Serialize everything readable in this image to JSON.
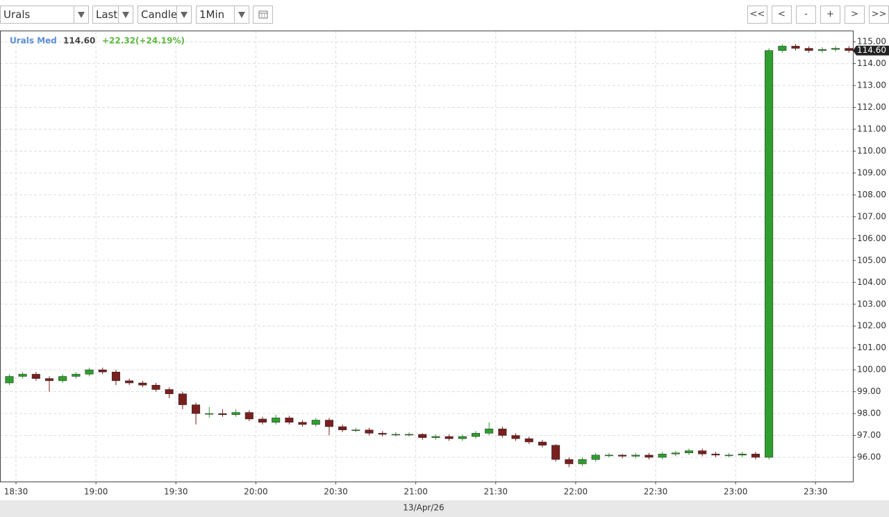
{
  "toolbar": {
    "symbol": "Urals",
    "field": "Last",
    "style": "Candle",
    "interval": "1Min",
    "nav": [
      "<<",
      "<",
      "-",
      ">",
      "+",
      ">>"
    ]
  },
  "chart_data": {
    "type": "candlestick",
    "title": "Urals Med",
    "last_price": {
      "value": 114.6,
      "label": "114.60"
    },
    "change_label": "+22.32(+24.19%)",
    "date_label": "13/Apr/26",
    "up_color": "#2e9e2e",
    "down_color": "#7a1f1f",
    "grid": true,
    "xlim": [
      "18:24",
      "23:44"
    ],
    "xticks": [
      "18:30",
      "19:00",
      "19:30",
      "20:00",
      "20:30",
      "21:00",
      "21:30",
      "22:00",
      "22:30",
      "23:00",
      "23:30"
    ],
    "ylim": [
      94.89,
      115.48
    ],
    "yticks": [
      {
        "value": 96,
        "label": "96.00"
      },
      {
        "value": 97,
        "label": "97.00"
      },
      {
        "value": 98,
        "label": "98.00"
      },
      {
        "value": 99,
        "label": "99.00"
      },
      {
        "value": 100,
        "label": "100.00"
      },
      {
        "value": 101,
        "label": "101.00"
      },
      {
        "value": 102,
        "label": "102.00"
      },
      {
        "value": 103,
        "label": "103.00"
      },
      {
        "value": 104,
        "label": "104.00"
      },
      {
        "value": 105,
        "label": "105.00"
      },
      {
        "value": 106,
        "label": "106.00"
      },
      {
        "value": 107,
        "label": "107.00"
      },
      {
        "value": 108,
        "label": "108.00"
      },
      {
        "value": 109,
        "label": "109.00"
      },
      {
        "value": 110,
        "label": "110.00"
      },
      {
        "value": 111,
        "label": "111.00"
      },
      {
        "value": 112,
        "label": "112.00"
      },
      {
        "value": 113,
        "label": "113.00"
      },
      {
        "value": 114,
        "label": "114.00"
      },
      {
        "value": 115,
        "label": "115.00"
      }
    ],
    "x": [
      "18:25",
      "18:30",
      "18:35",
      "18:40",
      "18:45",
      "18:50",
      "18:55",
      "19:00",
      "19:05",
      "19:10",
      "19:15",
      "19:20",
      "19:25",
      "19:30",
      "19:35",
      "19:40",
      "19:45",
      "19:50",
      "19:55",
      "20:00",
      "20:05",
      "20:10",
      "20:15",
      "20:20",
      "20:25",
      "20:30",
      "20:35",
      "20:40",
      "20:45",
      "20:50",
      "20:55",
      "21:00",
      "21:05",
      "21:10",
      "21:15",
      "21:20",
      "21:25",
      "21:30",
      "21:35",
      "21:40",
      "21:45",
      "21:50",
      "21:55",
      "22:00",
      "22:05",
      "22:10",
      "22:15",
      "22:20",
      "22:25",
      "22:30",
      "22:35",
      "22:40",
      "22:45",
      "22:50",
      "22:55",
      "23:00",
      "23:05",
      "23:10",
      "23:15",
      "23:20",
      "23:25",
      "23:30",
      "23:35",
      "23:40"
    ],
    "open": [
      99.4,
      99.7,
      99.8,
      99.6,
      99.5,
      99.7,
      99.8,
      100.0,
      99.9,
      99.5,
      99.4,
      99.3,
      99.1,
      98.9,
      98.4,
      98.0,
      98.0,
      97.95,
      98.05,
      97.75,
      97.6,
      97.8,
      97.6,
      97.5,
      97.7,
      97.4,
      97.25,
      97.25,
      97.1,
      97.05,
      97.05,
      97.05,
      96.9,
      96.95,
      96.85,
      96.95,
      97.1,
      97.3,
      97.0,
      96.85,
      96.7,
      96.55,
      95.9,
      95.7,
      95.9,
      96.1,
      96.1,
      96.05,
      96.1,
      96.0,
      96.15,
      96.2,
      96.3,
      96.15,
      96.1,
      96.1,
      96.15,
      96.0,
      114.6,
      114.8,
      114.7,
      114.6,
      114.65,
      114.7
    ],
    "high": [
      99.8,
      99.9,
      99.9,
      99.7,
      99.8,
      99.9,
      100.1,
      100.1,
      100.0,
      99.6,
      99.5,
      99.4,
      99.2,
      99.0,
      98.5,
      98.3,
      98.2,
      98.2,
      98.15,
      97.85,
      97.95,
      97.9,
      97.7,
      97.8,
      97.8,
      97.5,
      97.35,
      97.35,
      97.2,
      97.15,
      97.15,
      97.1,
      97.05,
      97.05,
      97.05,
      97.2,
      97.6,
      97.4,
      97.1,
      96.95,
      96.8,
      96.6,
      96.0,
      96.0,
      96.2,
      96.2,
      96.15,
      96.2,
      96.2,
      96.25,
      96.3,
      96.4,
      96.4,
      96.25,
      96.2,
      96.25,
      96.25,
      114.7,
      114.9,
      114.9,
      114.8,
      114.75,
      114.8,
      114.8
    ],
    "low": [
      99.3,
      99.6,
      99.5,
      99.0,
      99.4,
      99.6,
      99.7,
      99.8,
      99.3,
      99.3,
      99.2,
      99.0,
      98.7,
      98.2,
      97.5,
      97.8,
      97.85,
      97.85,
      97.65,
      97.5,
      97.5,
      97.5,
      97.4,
      97.4,
      97.0,
      97.15,
      97.15,
      97.0,
      96.95,
      96.95,
      96.95,
      96.8,
      96.8,
      96.75,
      96.75,
      96.85,
      97.0,
      96.9,
      96.75,
      96.6,
      96.45,
      95.8,
      95.55,
      95.6,
      95.8,
      96.0,
      95.95,
      95.95,
      95.9,
      95.9,
      96.05,
      96.1,
      96.05,
      96.0,
      96.0,
      96.0,
      95.9,
      95.9,
      114.5,
      114.6,
      114.5,
      114.5,
      114.55,
      114.5
    ],
    "close": [
      99.7,
      99.8,
      99.6,
      99.5,
      99.7,
      99.8,
      100.0,
      99.9,
      99.5,
      99.4,
      99.3,
      99.1,
      98.9,
      98.4,
      98.0,
      98.0,
      97.95,
      98.05,
      97.75,
      97.6,
      97.8,
      97.6,
      97.5,
      97.7,
      97.4,
      97.25,
      97.25,
      97.1,
      97.05,
      97.05,
      97.05,
      96.9,
      96.95,
      96.85,
      96.95,
      97.1,
      97.3,
      97.0,
      96.85,
      96.7,
      96.55,
      95.9,
      95.7,
      95.9,
      96.1,
      96.1,
      96.05,
      96.1,
      96.0,
      96.15,
      96.2,
      96.3,
      96.15,
      96.1,
      96.1,
      96.15,
      96.0,
      114.6,
      114.8,
      114.7,
      114.6,
      114.65,
      114.7,
      114.6
    ]
  }
}
